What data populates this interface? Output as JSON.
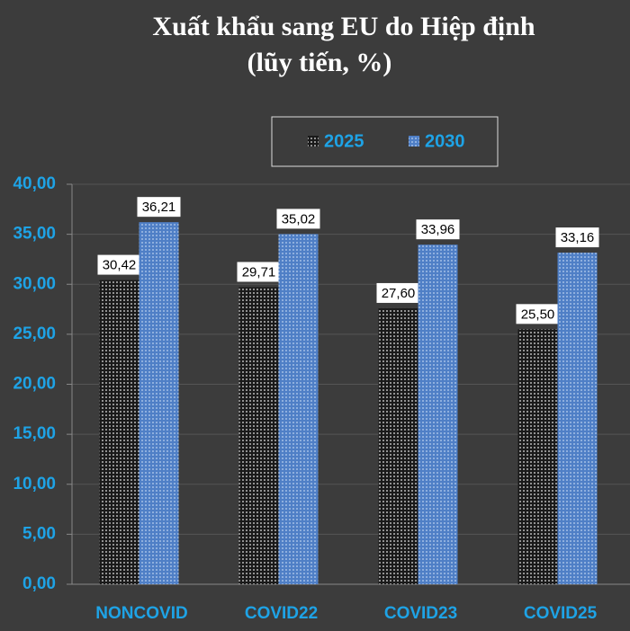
{
  "chart_data": {
    "type": "bar",
    "title": "Xuất khẩu sang EU do Hiệp định",
    "subtitle": "(lũy tiến, %)",
    "categories": [
      "NONCOVID",
      "COVID22",
      "COVID23",
      "COVID25"
    ],
    "series": [
      {
        "name": "2025",
        "color": "#1a1a1a",
        "values": [
          30.42,
          29.71,
          27.6,
          25.5
        ],
        "value_labels": [
          "30,42",
          "29,71",
          "27,60",
          "25,50"
        ]
      },
      {
        "name": "2030",
        "color": "#4f7fc6",
        "values": [
          36.21,
          35.02,
          33.96,
          33.16
        ],
        "value_labels": [
          "36,21",
          "35,02",
          "33,96",
          "33,16"
        ]
      }
    ],
    "ylim": [
      0,
      40
    ],
    "yticks": [
      {
        "value": 0,
        "label": "0,00"
      },
      {
        "value": 5,
        "label": "5,00"
      },
      {
        "value": 10,
        "label": "10,00"
      },
      {
        "value": 15,
        "label": "15,00"
      },
      {
        "value": 20,
        "label": "20,00"
      },
      {
        "value": 25,
        "label": "25,00"
      },
      {
        "value": 30,
        "label": "30,00"
      },
      {
        "value": 35,
        "label": "35,00"
      },
      {
        "value": 40,
        "label": "40,00"
      }
    ],
    "grid": true,
    "legend": "top"
  }
}
